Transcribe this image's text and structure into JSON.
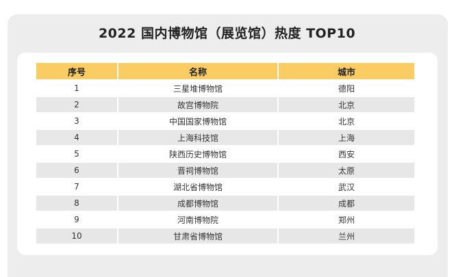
{
  "title": "2022 国内博物馆（展览馆）热度 TOP10",
  "table": {
    "headers": [
      "序号",
      "名称",
      "城市"
    ],
    "rows": [
      {
        "rank": "1",
        "name": "三星堆博物馆",
        "city": "德阳"
      },
      {
        "rank": "2",
        "name": "故宫博物院",
        "city": "北京"
      },
      {
        "rank": "3",
        "name": "中国国家博物馆",
        "city": "北京"
      },
      {
        "rank": "4",
        "name": "上海科技馆",
        "city": "上海"
      },
      {
        "rank": "5",
        "name": "陕西历史博物馆",
        "city": "西安"
      },
      {
        "rank": "6",
        "name": "晋祠博物馆",
        "city": "太原"
      },
      {
        "rank": "7",
        "name": "湖北省博物馆",
        "city": "武汉"
      },
      {
        "rank": "8",
        "name": "成都博物馆",
        "city": "成都"
      },
      {
        "rank": "9",
        "name": "河南博物院",
        "city": "郑州"
      },
      {
        "rank": "10",
        "name": "甘肃省博物馆",
        "city": "兰州"
      }
    ]
  },
  "colors": {
    "header_bg": "#f9cd63",
    "stripe_bg": "#e7e7e7",
    "panel_bg": "#ededed"
  }
}
